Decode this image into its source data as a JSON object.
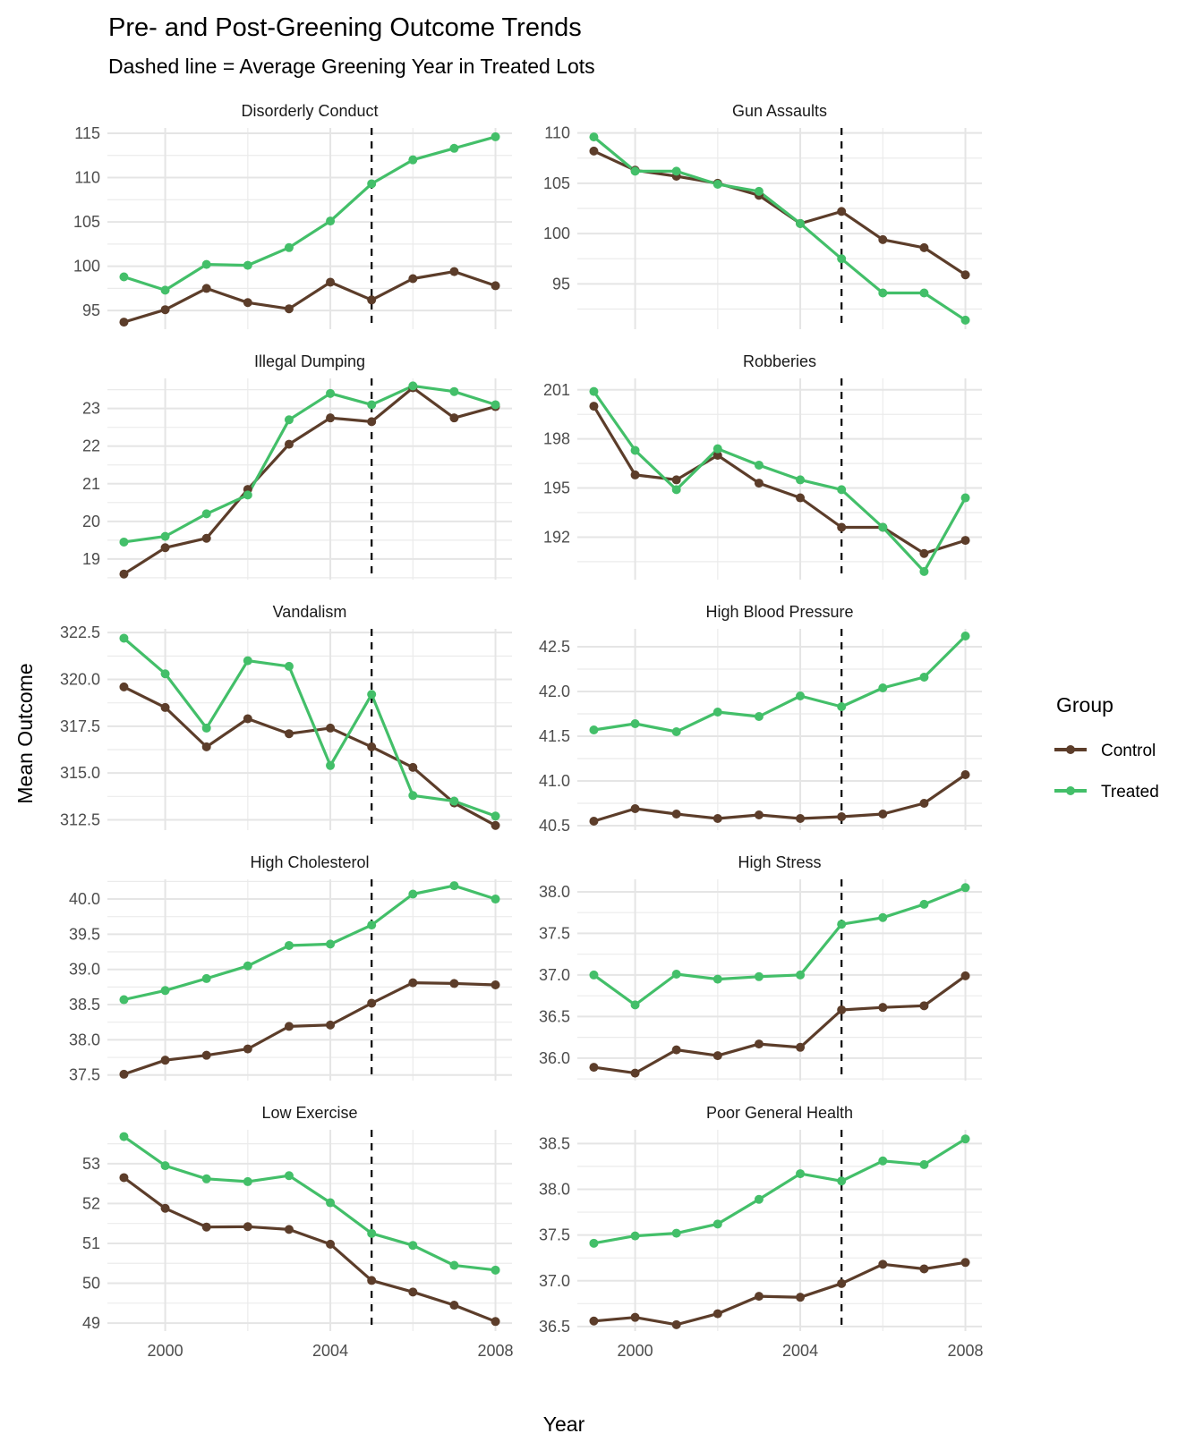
{
  "chart_data": {
    "type": "line",
    "title": "Pre- and Post-Greening Outcome Trends",
    "subtitle": "Dashed line = Average Greening Year in Treated Lots",
    "xlabel": "Year",
    "ylabel": "Mean Outcome",
    "x": [
      1999,
      2000,
      2001,
      2002,
      2003,
      2004,
      2005,
      2006,
      2007,
      2008
    ],
    "x_ticks": [
      2000,
      2004,
      2008
    ],
    "xlim": [
      1998.6,
      2008.4
    ],
    "grid": true,
    "reference_line": {
      "x": 2005,
      "style": "dashed",
      "label": "Average Greening Year in Treated Lots"
    },
    "legend": {
      "title": "Group",
      "placement": "right",
      "entries": [
        {
          "name": "Control",
          "color": "#5C3D2A"
        },
        {
          "name": "Treated",
          "color": "#43BF69"
        }
      ]
    },
    "panels": [
      {
        "name": "Disorderly Conduct",
        "ylim": [
          92.9,
          115.6
        ],
        "y_ticks": [
          "95",
          "100",
          "105",
          "110",
          "115"
        ],
        "y_tick_values": [
          95,
          100,
          105,
          110,
          115
        ],
        "series": [
          {
            "name": "Control",
            "values": [
              93.7,
              95.1,
              97.5,
              95.9,
              95.2,
              98.2,
              96.2,
              98.6,
              99.4,
              97.8
            ]
          },
          {
            "name": "Treated",
            "values": [
              98.8,
              97.3,
              100.2,
              100.1,
              102.1,
              105.1,
              109.3,
              112.0,
              113.3,
              114.6
            ]
          }
        ]
      },
      {
        "name": "Gun Assaults",
        "ylim": [
          90.5,
          110.5
        ],
        "y_ticks": [
          "95",
          "100",
          "105",
          "110"
        ],
        "y_tick_values": [
          95,
          100,
          105,
          110
        ],
        "series": [
          {
            "name": "Control",
            "values": [
              108.2,
              106.3,
              105.7,
              105.0,
              103.8,
              101.0,
              102.2,
              99.4,
              98.6,
              95.9
            ]
          },
          {
            "name": "Treated",
            "values": [
              109.6,
              106.2,
              106.2,
              104.9,
              104.2,
              101.0,
              97.5,
              94.1,
              94.1,
              91.4
            ]
          }
        ]
      },
      {
        "name": "Illegal Dumping",
        "ylim": [
          18.45,
          23.8
        ],
        "y_ticks": [
          "19",
          "20",
          "21",
          "22",
          "23"
        ],
        "y_tick_values": [
          19,
          20,
          21,
          22,
          23
        ],
        "series": [
          {
            "name": "Control",
            "values": [
              18.6,
              19.3,
              19.55,
              20.85,
              22.05,
              22.75,
              22.65,
              23.55,
              22.75,
              23.05
            ]
          },
          {
            "name": "Treated",
            "values": [
              19.45,
              19.6,
              20.2,
              20.7,
              22.7,
              23.4,
              23.1,
              23.6,
              23.45,
              23.1
            ]
          }
        ]
      },
      {
        "name": "Robberies",
        "ylim": [
          189.4,
          201.7
        ],
        "y_ticks": [
          "192",
          "195",
          "198",
          "201"
        ],
        "y_tick_values": [
          192,
          195,
          198,
          201
        ],
        "series": [
          {
            "name": "Control",
            "values": [
              200.0,
              195.8,
              195.5,
              197.0,
              195.3,
              194.4,
              192.6,
              192.6,
              191.0,
              191.8
            ]
          },
          {
            "name": "Treated",
            "values": [
              200.9,
              197.3,
              194.9,
              197.4,
              196.4,
              195.5,
              194.9,
              192.6,
              189.9,
              194.4
            ]
          }
        ]
      },
      {
        "name": "Vandalism",
        "ylim": [
          311.95,
          322.7
        ],
        "y_ticks": [
          "312.5",
          "315.0",
          "317.5",
          "320.0",
          "322.5"
        ],
        "y_tick_values": [
          312.5,
          315,
          317.5,
          320,
          322.5
        ],
        "series": [
          {
            "name": "Control",
            "values": [
              319.6,
              318.5,
              316.4,
              317.9,
              317.1,
              317.4,
              316.4,
              315.3,
              313.4,
              312.2
            ]
          },
          {
            "name": "Treated",
            "values": [
              322.2,
              320.3,
              317.4,
              321.0,
              320.7,
              315.4,
              319.2,
              313.8,
              313.5,
              312.7
            ]
          }
        ]
      },
      {
        "name": "High Blood Pressure",
        "ylim": [
          40.45,
          42.7
        ],
        "y_ticks": [
          "40.5",
          "41.0",
          "41.5",
          "42.0",
          "42.5"
        ],
        "y_tick_values": [
          40.5,
          41.0,
          41.5,
          42.0,
          42.5
        ],
        "series": [
          {
            "name": "Control",
            "values": [
              40.55,
              40.69,
              40.63,
              40.58,
              40.62,
              40.58,
              40.6,
              40.63,
              40.75,
              41.07
            ]
          },
          {
            "name": "Treated",
            "values": [
              41.57,
              41.64,
              41.55,
              41.77,
              41.72,
              41.95,
              41.83,
              42.04,
              42.16,
              42.62
            ]
          }
        ]
      },
      {
        "name": "High Cholesterol",
        "ylim": [
          37.42,
          40.28
        ],
        "y_ticks": [
          "37.5",
          "38.0",
          "38.5",
          "39.0",
          "39.5",
          "40.0"
        ],
        "y_tick_values": [
          37.5,
          38.0,
          38.5,
          39.0,
          39.5,
          40.0
        ],
        "series": [
          {
            "name": "Control",
            "values": [
              37.51,
              37.71,
              37.78,
              37.87,
              38.19,
              38.21,
              38.52,
              38.81,
              38.8,
              38.78
            ]
          },
          {
            "name": "Treated",
            "values": [
              38.57,
              38.7,
              38.87,
              39.05,
              39.34,
              39.36,
              39.63,
              40.07,
              40.19,
              40.0
            ]
          }
        ]
      },
      {
        "name": "High Stress",
        "ylim": [
          35.73,
          38.15
        ],
        "y_ticks": [
          "36.0",
          "36.5",
          "37.0",
          "37.5",
          "38.0"
        ],
        "y_tick_values": [
          36.0,
          36.5,
          37.0,
          37.5,
          38.0
        ],
        "series": [
          {
            "name": "Control",
            "values": [
              35.89,
              35.82,
              36.1,
              36.03,
              36.17,
              36.13,
              36.58,
              36.61,
              36.63,
              36.99
            ]
          },
          {
            "name": "Treated",
            "values": [
              37.0,
              36.64,
              37.01,
              36.95,
              36.98,
              37.0,
              37.61,
              37.69,
              37.85,
              38.05
            ]
          }
        ]
      },
      {
        "name": "Low Exercise",
        "ylim": [
          48.8,
          53.85
        ],
        "y_ticks": [
          "49",
          "50",
          "51",
          "52",
          "53"
        ],
        "y_tick_values": [
          49,
          50,
          51,
          52,
          53
        ],
        "series": [
          {
            "name": "Control",
            "values": [
              52.65,
              51.88,
              51.41,
              51.42,
              51.35,
              50.98,
              50.07,
              49.78,
              49.45,
              49.04
            ]
          },
          {
            "name": "Treated",
            "values": [
              53.68,
              52.95,
              52.62,
              52.55,
              52.7,
              52.02,
              51.25,
              50.95,
              50.45,
              50.33
            ]
          }
        ]
      },
      {
        "name": "Poor General Health",
        "ylim": [
          36.45,
          38.65
        ],
        "y_ticks": [
          "36.5",
          "37.0",
          "37.5",
          "38.0",
          "38.5"
        ],
        "y_tick_values": [
          36.5,
          37.0,
          37.5,
          38.0,
          38.5
        ],
        "series": [
          {
            "name": "Control",
            "values": [
              36.56,
              36.6,
              36.52,
              36.64,
              36.83,
              36.82,
              36.97,
              37.18,
              37.13,
              37.2
            ]
          },
          {
            "name": "Treated",
            "values": [
              37.41,
              37.49,
              37.52,
              37.62,
              37.89,
              38.17,
              38.09,
              38.31,
              38.27,
              38.55
            ]
          }
        ]
      }
    ]
  }
}
